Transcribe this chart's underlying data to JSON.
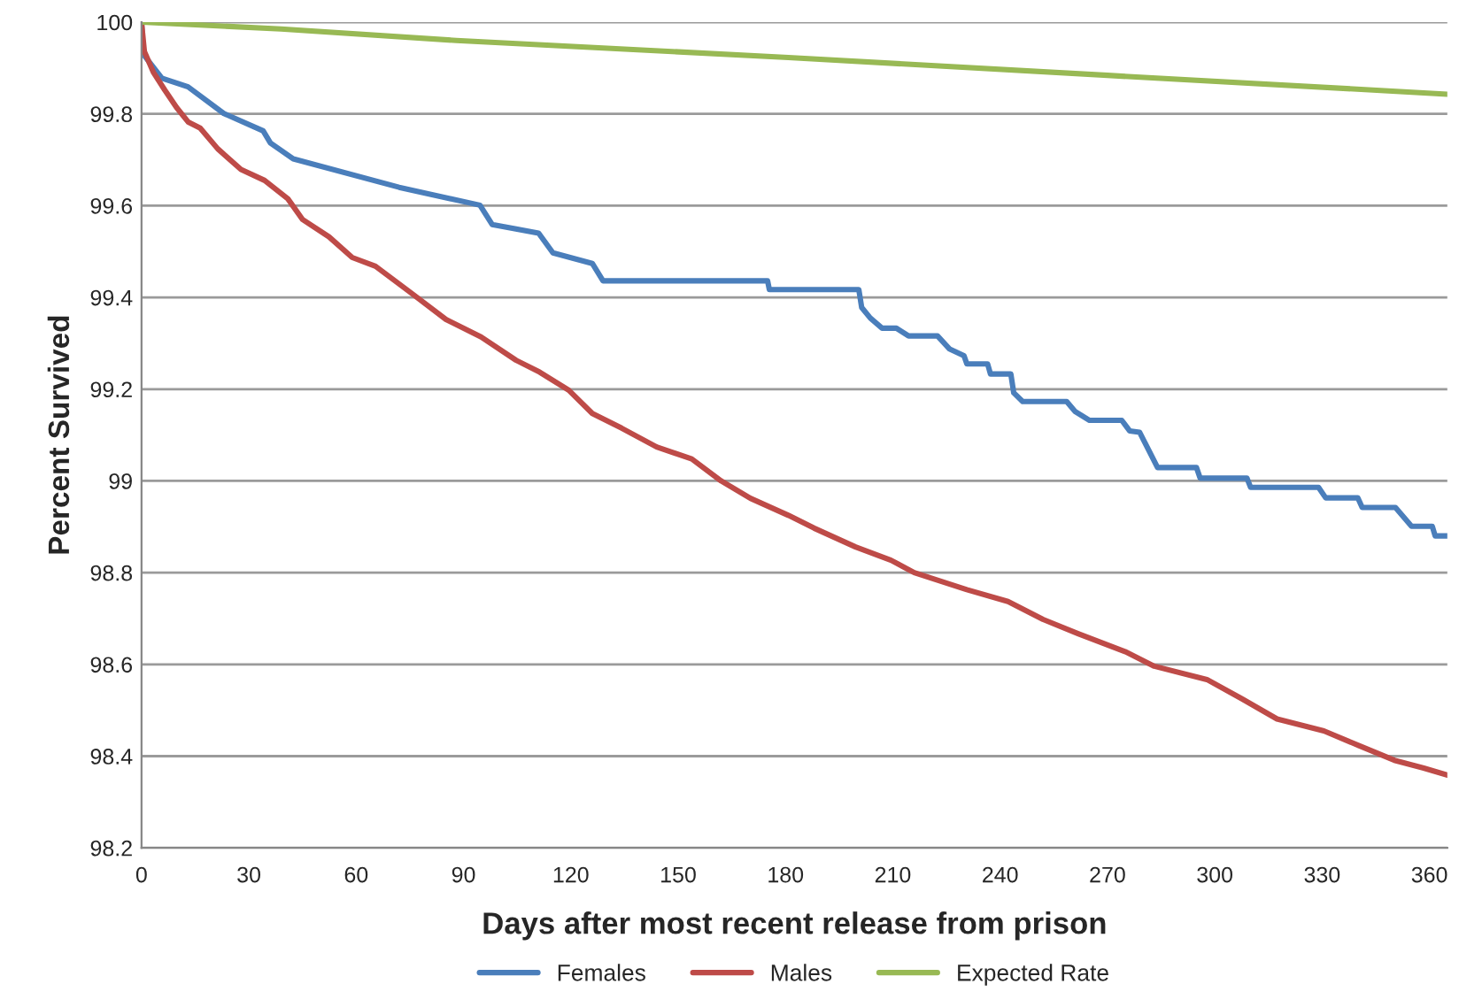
{
  "chart_data": {
    "type": "line",
    "xlabel": "Days after most recent release from prison",
    "ylabel": "Percent Survived",
    "xlim": [
      0,
      365
    ],
    "ylim": [
      98.2,
      100
    ],
    "xticks": [
      0,
      30,
      60,
      90,
      120,
      150,
      180,
      210,
      240,
      270,
      300,
      330,
      360
    ],
    "yticks": [
      98.2,
      98.4,
      98.6,
      98.8,
      99,
      99.2,
      99.4,
      99.6,
      99.8,
      100
    ],
    "grid": "y",
    "legend": "bottom",
    "marker": "none",
    "line_style": "solid",
    "series": [
      {
        "name": "Females",
        "color": "#4a7ebb",
        "x": [
          0,
          0.5,
          5.7,
          13,
          23,
          34,
          36,
          42.4,
          72,
          94.6,
          98,
          111,
          115,
          126,
          129,
          175,
          175.5,
          200.5,
          201.3,
          203.7,
          207,
          211,
          214.4,
          222.5,
          225.8,
          229.9,
          230.7,
          236.5,
          237.3,
          243,
          243.8,
          246.3,
          258.6,
          261,
          265,
          274,
          276.2,
          279,
          284,
          294.9,
          295.9,
          309,
          310,
          329,
          331,
          340,
          341.2,
          350.5,
          355,
          360.8,
          361.6,
          365
        ],
        "values": [
          100,
          99.93,
          99.878,
          99.859,
          99.801,
          99.763,
          99.737,
          99.702,
          99.64,
          99.601,
          99.559,
          99.54,
          99.497,
          99.474,
          99.436,
          99.436,
          99.417,
          99.417,
          99.378,
          99.355,
          99.333,
          99.333,
          99.316,
          99.316,
          99.288,
          99.273,
          99.255,
          99.255,
          99.233,
          99.233,
          99.192,
          99.173,
          99.173,
          99.151,
          99.132,
          99.132,
          99.109,
          99.106,
          99.029,
          99.029,
          99.006,
          99.006,
          98.986,
          98.986,
          98.963,
          98.963,
          98.942,
          98.942,
          98.901,
          98.901,
          98.88,
          98.88
        ]
      },
      {
        "name": "Males",
        "color": "#be4b48",
        "x": [
          0,
          0.8,
          3.3,
          6.5,
          9.8,
          13.1,
          16.4,
          21.3,
          27.8,
          34.4,
          40.9,
          45,
          52.4,
          58.9,
          65.4,
          75.3,
          85.1,
          94.9,
          104.7,
          111.3,
          119.4,
          126,
          134.2,
          144,
          153.8,
          162,
          170.2,
          180.8,
          188,
          199.6,
          209.5,
          216,
          230.7,
          242.2,
          252,
          261.8,
          274.9,
          283.1,
          297.8,
          307.6,
          317.4,
          330.5,
          340.3,
          350.2,
          358.4,
          364.9
        ],
        "values": [
          100,
          99.936,
          99.891,
          99.852,
          99.814,
          99.782,
          99.769,
          99.724,
          99.679,
          99.655,
          99.615,
          99.57,
          99.532,
          99.487,
          99.468,
          99.41,
          99.352,
          99.314,
          99.263,
          99.237,
          99.198,
          99.147,
          99.115,
          99.074,
          99.048,
          99.0,
          98.962,
          98.925,
          98.897,
          98.856,
          98.827,
          98.8,
          98.763,
          98.737,
          98.698,
          98.667,
          98.628,
          98.596,
          98.567,
          98.525,
          98.481,
          98.455,
          98.423,
          98.391,
          98.374,
          98.359
        ]
      },
      {
        "name": "Expected Rate",
        "color": "#98b954",
        "x": [
          0,
          39,
          88,
          180.8,
          270,
          365
        ],
        "values": [
          100,
          99.985,
          99.96,
          99.923,
          99.884,
          99.843
        ]
      }
    ]
  }
}
